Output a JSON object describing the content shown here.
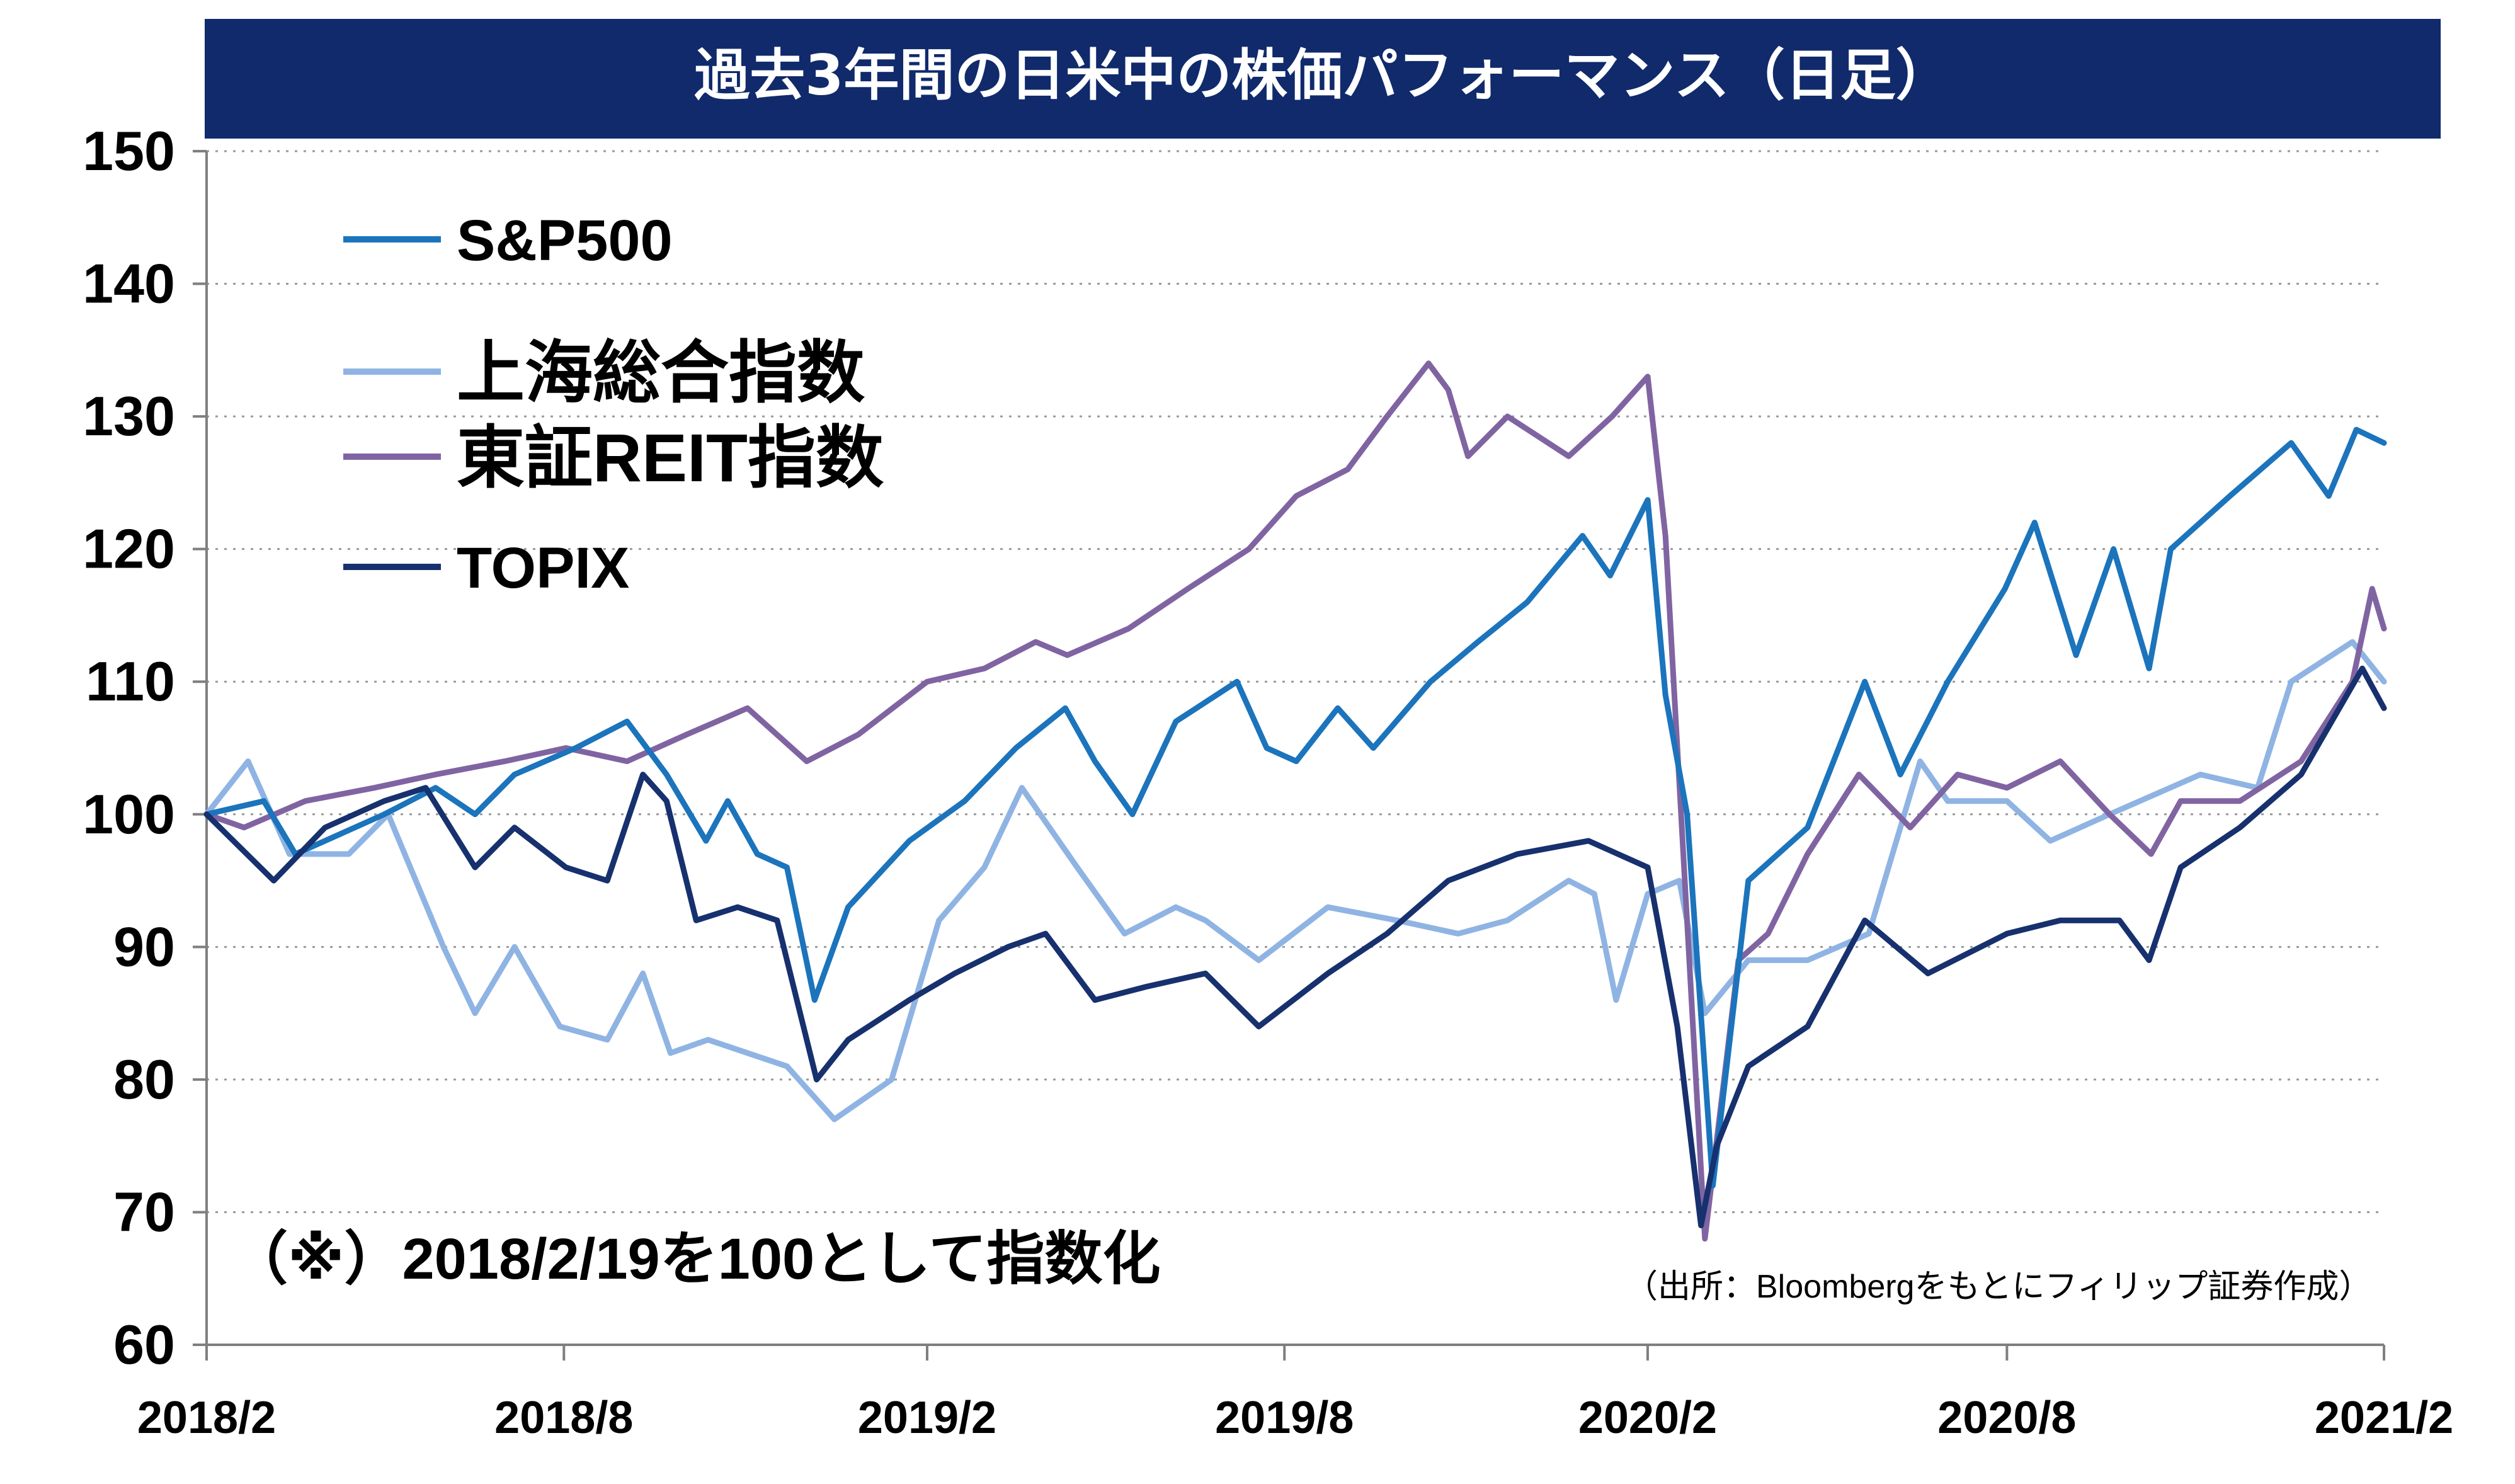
{
  "chart_data": {
    "type": "line",
    "title": "過去3年間の日米中の株価パフォーマンス（日足）",
    "note": "（※）2018/2/19を100として指数化",
    "source": "（出所：Bloombergをもとにフィリップ証券作成）",
    "ylim": [
      60,
      150
    ],
    "y_ticks": [
      "150",
      "140",
      "130",
      "120",
      "110",
      "100",
      "90",
      "80",
      "70",
      "60"
    ],
    "xlim": [
      "2018-02-19",
      "2021-02-26"
    ],
    "x_ticks": [
      {
        "date": "2018-02-19",
        "label": "2018/2"
      },
      {
        "date": "2018-08-19",
        "label": "2018/8"
      },
      {
        "date": "2019-02-19",
        "label": "2019/2"
      },
      {
        "date": "2019-08-19",
        "label": "2019/8"
      },
      {
        "date": "2020-02-19",
        "label": "2020/2"
      },
      {
        "date": "2020-08-19",
        "label": "2020/8"
      },
      {
        "date": "2021-02-26",
        "label": "2021/2"
      }
    ],
    "grid": {
      "horizontal": true,
      "vertical": false
    },
    "legend_position": "top-left",
    "series": [
      {
        "name": "S&P500",
        "color": "#1b74bc",
        "points": [
          [
            "2018-02-19",
            100
          ],
          [
            "2018-03-20",
            101
          ],
          [
            "2018-04-05",
            97
          ],
          [
            "2018-04-20",
            98
          ],
          [
            "2018-05-20",
            100
          ],
          [
            "2018-06-15",
            102
          ],
          [
            "2018-07-05",
            100
          ],
          [
            "2018-07-25",
            103
          ],
          [
            "2018-08-25",
            105
          ],
          [
            "2018-09-20",
            107
          ],
          [
            "2018-10-10",
            103
          ],
          [
            "2018-10-30",
            98
          ],
          [
            "2018-11-10",
            101
          ],
          [
            "2018-11-25",
            97
          ],
          [
            "2018-12-10",
            96
          ],
          [
            "2018-12-24",
            86
          ],
          [
            "2019-01-10",
            93
          ],
          [
            "2019-02-10",
            98
          ],
          [
            "2019-03-10",
            101
          ],
          [
            "2019-04-05",
            105
          ],
          [
            "2019-04-30",
            108
          ],
          [
            "2019-05-15",
            104
          ],
          [
            "2019-06-03",
            100
          ],
          [
            "2019-06-25",
            107
          ],
          [
            "2019-07-26",
            110
          ],
          [
            "2019-08-10",
            105
          ],
          [
            "2019-08-25",
            104
          ],
          [
            "2019-09-15",
            108
          ],
          [
            "2019-10-03",
            105
          ],
          [
            "2019-11-01",
            110
          ],
          [
            "2019-11-25",
            113
          ],
          [
            "2019-12-20",
            116
          ],
          [
            "2020-01-17",
            121
          ],
          [
            "2020-01-31",
            118
          ],
          [
            "2020-02-19",
            123.7
          ],
          [
            "2020-02-28",
            109
          ],
          [
            "2020-03-10",
            100
          ],
          [
            "2020-03-23",
            72
          ],
          [
            "2020-04-10",
            95
          ],
          [
            "2020-05-10",
            99
          ],
          [
            "2020-06-08",
            110
          ],
          [
            "2020-06-26",
            103
          ],
          [
            "2020-07-20",
            110
          ],
          [
            "2020-08-18",
            117
          ],
          [
            "2020-09-02",
            122
          ],
          [
            "2020-09-23",
            112
          ],
          [
            "2020-10-12",
            120
          ],
          [
            "2020-10-30",
            111
          ],
          [
            "2020-11-10",
            120
          ],
          [
            "2020-12-10",
            124
          ],
          [
            "2021-01-10",
            128
          ],
          [
            "2021-01-29",
            124
          ],
          [
            "2021-02-12",
            129
          ],
          [
            "2021-02-26",
            128
          ]
        ]
      },
      {
        "name": "上海総合指数",
        "color": "#8fb4e3",
        "points": [
          [
            "2018-02-19",
            100
          ],
          [
            "2018-03-12",
            104
          ],
          [
            "2018-04-02",
            97
          ],
          [
            "2018-05-02",
            97
          ],
          [
            "2018-05-22",
            100
          ],
          [
            "2018-06-19",
            90
          ],
          [
            "2018-07-05",
            85
          ],
          [
            "2018-07-25",
            90
          ],
          [
            "2018-08-17",
            84
          ],
          [
            "2018-09-10",
            83
          ],
          [
            "2018-09-28",
            88
          ],
          [
            "2018-10-12",
            82
          ],
          [
            "2018-10-31",
            83
          ],
          [
            "2018-11-20",
            82
          ],
          [
            "2018-12-10",
            81
          ],
          [
            "2019-01-03",
            77
          ],
          [
            "2019-02-01",
            80
          ],
          [
            "2019-02-25",
            92
          ],
          [
            "2019-03-20",
            96
          ],
          [
            "2019-04-08",
            102
          ],
          [
            "2019-05-06",
            96
          ],
          [
            "2019-05-30",
            91
          ],
          [
            "2019-06-25",
            93
          ],
          [
            "2019-07-10",
            92
          ],
          [
            "2019-08-06",
            89
          ],
          [
            "2019-09-10",
            93
          ],
          [
            "2019-10-15",
            92
          ],
          [
            "2019-11-15",
            91
          ],
          [
            "2019-12-10",
            92
          ],
          [
            "2020-01-10",
            95
          ],
          [
            "2020-01-23",
            94
          ],
          [
            "2020-02-03",
            86
          ],
          [
            "2020-02-19",
            94
          ],
          [
            "2020-03-06",
            95
          ],
          [
            "2020-03-19",
            85
          ],
          [
            "2020-04-10",
            89
          ],
          [
            "2020-05-10",
            89
          ],
          [
            "2020-06-10",
            91
          ],
          [
            "2020-07-06",
            104
          ],
          [
            "2020-07-20",
            101
          ],
          [
            "2020-08-19",
            101
          ],
          [
            "2020-09-10",
            98
          ],
          [
            "2020-10-10",
            100
          ],
          [
            "2020-11-25",
            103
          ],
          [
            "2020-12-24",
            102
          ],
          [
            "2021-01-10",
            110
          ],
          [
            "2021-02-10",
            113
          ],
          [
            "2021-02-26",
            110
          ]
        ]
      },
      {
        "name": "東証REIT指数",
        "color": "#8064a2",
        "points": [
          [
            "2018-02-19",
            100
          ],
          [
            "2018-03-10",
            99
          ],
          [
            "2018-04-10",
            101
          ],
          [
            "2018-05-15",
            102
          ],
          [
            "2018-06-15",
            103
          ],
          [
            "2018-07-20",
            104
          ],
          [
            "2018-08-20",
            105
          ],
          [
            "2018-09-20",
            104
          ],
          [
            "2018-10-20",
            106
          ],
          [
            "2018-11-20",
            108
          ],
          [
            "2018-12-20",
            104
          ],
          [
            "2019-01-15",
            106
          ],
          [
            "2019-02-19",
            110
          ],
          [
            "2019-03-20",
            111
          ],
          [
            "2019-04-15",
            113
          ],
          [
            "2019-05-01",
            112
          ],
          [
            "2019-06-01",
            114
          ],
          [
            "2019-07-01",
            117
          ],
          [
            "2019-08-01",
            120
          ],
          [
            "2019-08-25",
            124
          ],
          [
            "2019-09-20",
            126
          ],
          [
            "2019-10-10",
            130
          ],
          [
            "2019-10-31",
            134
          ],
          [
            "2019-11-10",
            132
          ],
          [
            "2019-11-20",
            127
          ],
          [
            "2019-12-10",
            130
          ],
          [
            "2020-01-10",
            127
          ],
          [
            "2020-02-01",
            130
          ],
          [
            "2020-02-19",
            133
          ],
          [
            "2020-02-28",
            121
          ],
          [
            "2020-03-19",
            68
          ],
          [
            "2020-04-05",
            89
          ],
          [
            "2020-04-20",
            91
          ],
          [
            "2020-05-10",
            97
          ],
          [
            "2020-06-05",
            103
          ],
          [
            "2020-07-01",
            99
          ],
          [
            "2020-07-25",
            103
          ],
          [
            "2020-08-19",
            102
          ],
          [
            "2020-09-15",
            104
          ],
          [
            "2020-10-10",
            100
          ],
          [
            "2020-10-31",
            97
          ],
          [
            "2020-11-15",
            101
          ],
          [
            "2020-12-15",
            101
          ],
          [
            "2021-01-15",
            104
          ],
          [
            "2021-02-10",
            110
          ],
          [
            "2021-02-20",
            117
          ],
          [
            "2021-02-26",
            114
          ]
        ]
      },
      {
        "name": "TOPIX",
        "color": "#17306e",
        "points": [
          [
            "2018-02-19",
            100
          ],
          [
            "2018-03-25",
            95
          ],
          [
            "2018-04-20",
            99
          ],
          [
            "2018-05-20",
            101
          ],
          [
            "2018-06-10",
            102
          ],
          [
            "2018-07-05",
            96
          ],
          [
            "2018-07-25",
            99
          ],
          [
            "2018-08-20",
            96
          ],
          [
            "2018-09-10",
            95
          ],
          [
            "2018-09-28",
            103
          ],
          [
            "2018-10-10",
            101
          ],
          [
            "2018-10-25",
            92
          ],
          [
            "2018-11-15",
            93
          ],
          [
            "2018-12-05",
            92
          ],
          [
            "2018-12-25",
            80
          ],
          [
            "2019-01-10",
            83
          ],
          [
            "2019-02-10",
            86
          ],
          [
            "2019-03-05",
            88
          ],
          [
            "2019-04-01",
            90
          ],
          [
            "2019-04-20",
            91
          ],
          [
            "2019-05-15",
            86
          ],
          [
            "2019-06-10",
            87
          ],
          [
            "2019-07-10",
            88
          ],
          [
            "2019-08-06",
            84
          ],
          [
            "2019-09-10",
            88
          ],
          [
            "2019-10-10",
            91
          ],
          [
            "2019-11-10",
            95
          ],
          [
            "2019-12-15",
            97
          ],
          [
            "2020-01-20",
            98
          ],
          [
            "2020-02-19",
            96
          ],
          [
            "2020-03-05",
            84
          ],
          [
            "2020-03-17",
            69
          ],
          [
            "2020-03-25",
            75
          ],
          [
            "2020-04-10",
            81
          ],
          [
            "2020-05-10",
            84
          ],
          [
            "2020-06-08",
            92
          ],
          [
            "2020-07-10",
            88
          ],
          [
            "2020-08-19",
            91
          ],
          [
            "2020-09-15",
            92
          ],
          [
            "2020-10-15",
            92
          ],
          [
            "2020-10-30",
            89
          ],
          [
            "2020-11-15",
            96
          ],
          [
            "2020-12-15",
            99
          ],
          [
            "2021-01-15",
            103
          ],
          [
            "2021-02-15",
            111
          ],
          [
            "2021-02-26",
            108
          ]
        ]
      }
    ]
  }
}
